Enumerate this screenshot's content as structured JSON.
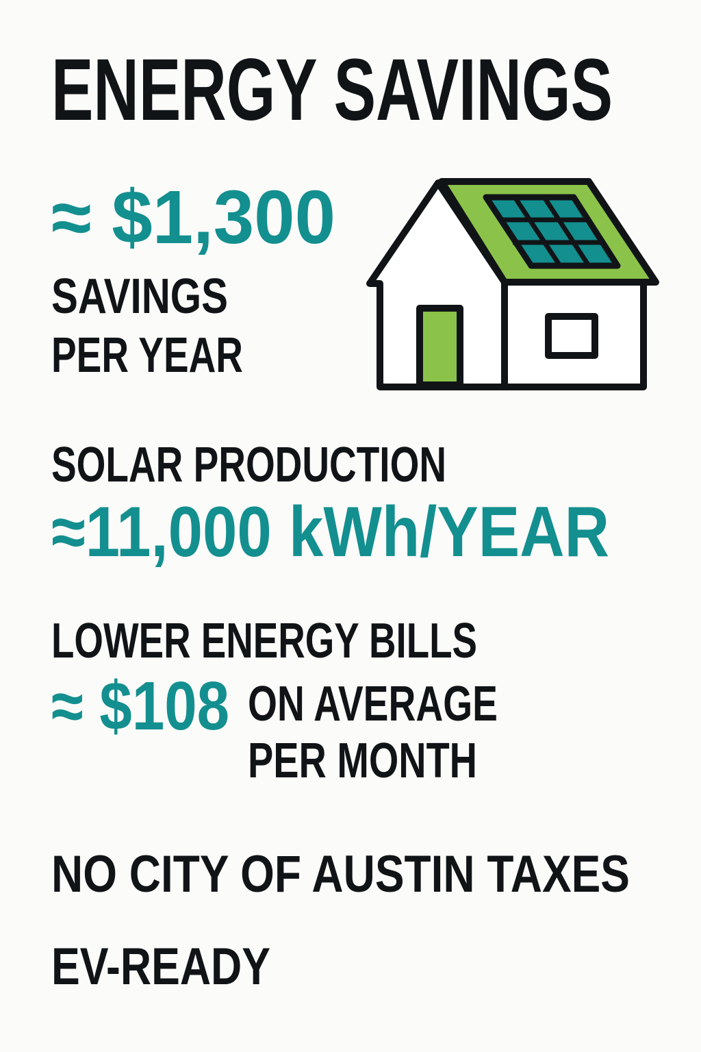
{
  "title": "ENERGY SAVINGS",
  "savings": {
    "value": "≈ $1,300",
    "label_lines": [
      "SAVINGS",
      "PER YEAR"
    ]
  },
  "solar": {
    "label": "SOLAR PRODUCTION",
    "value": "≈11,000 kWh/YEAR"
  },
  "bills": {
    "label": "LOWER ENERGY BILLS",
    "value": "≈ $108",
    "note_lines": [
      "ON AVERAGE",
      "PER MONTH"
    ]
  },
  "features": [
    "NO CITY OF AUSTIN TAXES",
    "EV-READY"
  ]
}
